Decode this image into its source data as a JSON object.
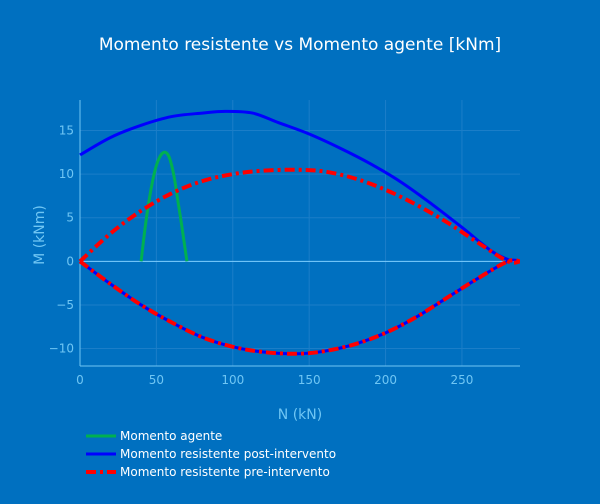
{
  "chart_data": {
    "type": "line",
    "title": "Momento resistente vs Momento agente [kNm]",
    "xlabel": "N (kN)",
    "ylabel": "M (kNm)",
    "xlim": [
      0,
      288
    ],
    "ylim": [
      -12,
      18.5
    ],
    "x_ticks": [
      0,
      50,
      100,
      150,
      200,
      250
    ],
    "y_ticks": [
      -10,
      -5,
      0,
      5,
      10,
      15
    ],
    "grid": true,
    "legend_position": "bottom-left",
    "colors": {
      "background": "#0070c0",
      "axis_text": "#6fc6f4",
      "title": "#ffffff",
      "grid": "#1b7ec8",
      "zero_line": "#7fcfff"
    },
    "series": [
      {
        "name": "Momento agente",
        "color": "#00b050",
        "dash": "solid",
        "x": [
          40,
          42,
          44,
          46,
          48,
          50,
          52,
          54,
          56,
          58,
          60,
          62,
          64,
          66,
          68,
          70
        ],
        "y": [
          0,
          3.0,
          5.6,
          7.8,
          9.6,
          11.0,
          11.9,
          12.4,
          12.5,
          12.1,
          11.0,
          9.3,
          7.0,
          4.8,
          2.4,
          0
        ]
      },
      {
        "name": "Momento resistente post-intervento",
        "color": "#0000ff",
        "dash": "solid",
        "x": [
          0,
          20,
          40,
          60,
          80,
          95,
          113,
          130,
          150,
          170,
          190,
          210,
          230,
          250,
          270,
          283
        ],
        "y": [
          12.2,
          14.2,
          15.6,
          16.6,
          17.0,
          17.2,
          17.0,
          15.9,
          14.6,
          13.0,
          11.2,
          9.1,
          6.6,
          3.9,
          1.1,
          0
        ]
      },
      {
        "name": "Momento resistente post-intervento",
        "color": "#0000ff",
        "dash": "solid",
        "x": [
          0,
          20,
          40,
          60,
          80,
          100,
          120,
          142,
          160,
          180,
          200,
          220,
          240,
          260,
          280,
          288
        ],
        "y": [
          0,
          -2.6,
          -5.0,
          -7.0,
          -8.7,
          -9.8,
          -10.4,
          -10.6,
          -10.3,
          -9.5,
          -8.2,
          -6.4,
          -4.2,
          -2.0,
          0,
          0
        ]
      },
      {
        "name": "Momento resistente pre-intervento",
        "color": "#ff0000",
        "dash": "dashdot",
        "x": [
          0,
          20,
          40,
          60,
          80,
          100,
          120,
          142,
          160,
          180,
          200,
          220,
          240,
          260,
          280,
          288
        ],
        "y": [
          0,
          3.2,
          5.8,
          7.8,
          9.2,
          10.0,
          10.4,
          10.5,
          10.3,
          9.5,
          8.2,
          6.5,
          4.5,
          2.2,
          0,
          0
        ]
      },
      {
        "name": "Momento resistente pre-intervento",
        "color": "#ff0000",
        "dash": "dashdot",
        "x": [
          0,
          20,
          40,
          60,
          80,
          100,
          120,
          142,
          160,
          180,
          200,
          220,
          240,
          260,
          280,
          288
        ],
        "y": [
          0,
          -2.6,
          -5.0,
          -7.0,
          -8.7,
          -9.8,
          -10.4,
          -10.6,
          -10.3,
          -9.5,
          -8.2,
          -6.4,
          -4.2,
          -2.0,
          0,
          0
        ]
      }
    ],
    "legend": [
      {
        "name": "Momento agente",
        "color": "#00b050",
        "dash": "solid"
      },
      {
        "name": "Momento resistente post-intervento",
        "color": "#0000ff",
        "dash": "solid"
      },
      {
        "name": "Momento resistente pre-intervento",
        "color": "#ff0000",
        "dash": "dashdot"
      }
    ]
  }
}
